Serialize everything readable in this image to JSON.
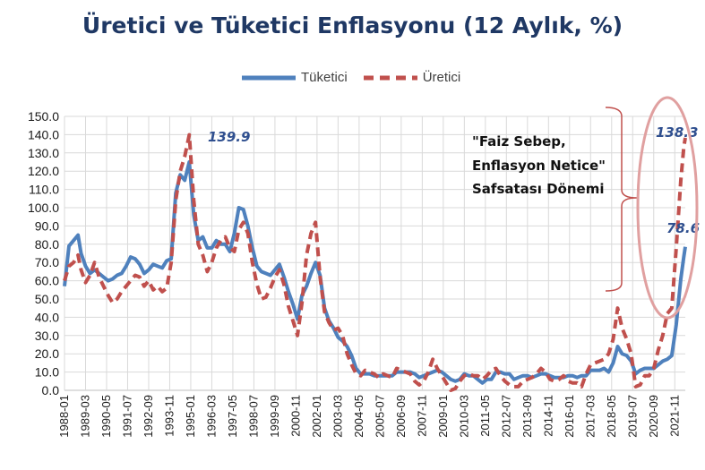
{
  "chart_data": {
    "type": "line",
    "title": "Üretici ve Tüketici Enflasyonu (12 Aylık, %)",
    "xlabel": "",
    "ylabel": "",
    "ylim": [
      0,
      150
    ],
    "yticks": [
      "0.0",
      "10.0",
      "20.0",
      "30.0",
      "40.0",
      "50.0",
      "60.0",
      "70.0",
      "80.0",
      "90.0",
      "100.0",
      "110.0",
      "120.0",
      "130.0",
      "140.0",
      "150.0"
    ],
    "xticks": [
      "1988-01",
      "1989-03",
      "1990-05",
      "1991-07",
      "1992-09",
      "1993-11",
      "1995-01",
      "1996-03",
      "1997-05",
      "1998-07",
      "1999-09",
      "2000-11",
      "2002-01",
      "2003-03",
      "2004-05",
      "2005-07",
      "2006-09",
      "2007-11",
      "2009-01",
      "2010-03",
      "2011-05",
      "2012-07",
      "2013-09",
      "2014-11",
      "2016-01",
      "2017-03",
      "2018-05",
      "2019-07",
      "2020-09",
      "2021-11"
    ],
    "grid": true,
    "legend": "top",
    "series": [
      {
        "name": "Tüketici",
        "style": "solid",
        "color": "#4f81bd",
        "points": [
          [
            "1988-01",
            57
          ],
          [
            "1988-04",
            79
          ],
          [
            "1988-07",
            82
          ],
          [
            "1988-10",
            85
          ],
          [
            "1988-12",
            75
          ],
          [
            "1989-03",
            68
          ],
          [
            "1989-06",
            64
          ],
          [
            "1989-09",
            66
          ],
          [
            "1989-12",
            64
          ],
          [
            "1990-03",
            62
          ],
          [
            "1990-06",
            60
          ],
          [
            "1990-09",
            61
          ],
          [
            "1990-12",
            63
          ],
          [
            "1991-03",
            64
          ],
          [
            "1991-06",
            68
          ],
          [
            "1991-09",
            73
          ],
          [
            "1991-12",
            72
          ],
          [
            "1992-03",
            69
          ],
          [
            "1992-06",
            64
          ],
          [
            "1992-09",
            66
          ],
          [
            "1992-12",
            69
          ],
          [
            "1993-03",
            68
          ],
          [
            "1993-06",
            67
          ],
          [
            "1993-09",
            71
          ],
          [
            "1993-12",
            72
          ],
          [
            "1994-03",
            108
          ],
          [
            "1994-06",
            118
          ],
          [
            "1994-09",
            115
          ],
          [
            "1994-12",
            125
          ],
          [
            "1995-03",
            96
          ],
          [
            "1995-06",
            82
          ],
          [
            "1995-09",
            84
          ],
          [
            "1995-12",
            78
          ],
          [
            "1996-03",
            78
          ],
          [
            "1996-06",
            82
          ],
          [
            "1996-09",
            80
          ],
          [
            "1996-12",
            80
          ],
          [
            "1997-03",
            76
          ],
          [
            "1997-06",
            86
          ],
          [
            "1997-09",
            100
          ],
          [
            "1997-12",
            99
          ],
          [
            "1998-03",
            90
          ],
          [
            "1998-06",
            78
          ],
          [
            "1998-09",
            68
          ],
          [
            "1998-12",
            65
          ],
          [
            "1999-03",
            64
          ],
          [
            "1999-06",
            63
          ],
          [
            "1999-09",
            66
          ],
          [
            "1999-12",
            69
          ],
          [
            "2000-03",
            62
          ],
          [
            "2000-06",
            54
          ],
          [
            "2000-09",
            47
          ],
          [
            "2000-12",
            39
          ],
          [
            "2001-03",
            52
          ],
          [
            "2001-06",
            57
          ],
          [
            "2001-09",
            64
          ],
          [
            "2001-12",
            70
          ],
          [
            "2002-03",
            63
          ],
          [
            "2002-06",
            45
          ],
          [
            "2002-09",
            38
          ],
          [
            "2002-12",
            34
          ],
          [
            "2003-03",
            29
          ],
          [
            "2003-06",
            27
          ],
          [
            "2003-09",
            24
          ],
          [
            "2003-12",
            19
          ],
          [
            "2004-03",
            12
          ],
          [
            "2004-06",
            9
          ],
          [
            "2004-09",
            9
          ],
          [
            "2004-12",
            9
          ],
          [
            "2005-03",
            8
          ],
          [
            "2005-06",
            8
          ],
          [
            "2005-09",
            8
          ],
          [
            "2005-12",
            8
          ],
          [
            "2006-03",
            8
          ],
          [
            "2006-06",
            10
          ],
          [
            "2006-09",
            10
          ],
          [
            "2006-12",
            10
          ],
          [
            "2007-03",
            10
          ],
          [
            "2007-06",
            9
          ],
          [
            "2007-09",
            7
          ],
          [
            "2007-12",
            8
          ],
          [
            "2008-03",
            9
          ],
          [
            "2008-06",
            10
          ],
          [
            "2008-09",
            11
          ],
          [
            "2008-12",
            10
          ],
          [
            "2009-03",
            8
          ],
          [
            "2009-06",
            6
          ],
          [
            "2009-09",
            5
          ],
          [
            "2009-12",
            6
          ],
          [
            "2010-03",
            9
          ],
          [
            "2010-06",
            8
          ],
          [
            "2010-09",
            8
          ],
          [
            "2010-12",
            6
          ],
          [
            "2011-03",
            4
          ],
          [
            "2011-06",
            6
          ],
          [
            "2011-09",
            6
          ],
          [
            "2011-12",
            10
          ],
          [
            "2012-03",
            10
          ],
          [
            "2012-06",
            9
          ],
          [
            "2012-09",
            9
          ],
          [
            "2012-12",
            6
          ],
          [
            "2013-03",
            7
          ],
          [
            "2013-06",
            8
          ],
          [
            "2013-09",
            8
          ],
          [
            "2013-12",
            7
          ],
          [
            "2014-03",
            8
          ],
          [
            "2014-06",
            9
          ],
          [
            "2014-09",
            9
          ],
          [
            "2014-12",
            8
          ],
          [
            "2015-03",
            7
          ],
          [
            "2015-06",
            7
          ],
          [
            "2015-09",
            7
          ],
          [
            "2015-12",
            8
          ],
          [
            "2016-03",
            8
          ],
          [
            "2016-06",
            7
          ],
          [
            "2016-09",
            8
          ],
          [
            "2016-12",
            8
          ],
          [
            "2017-03",
            11
          ],
          [
            "2017-06",
            11
          ],
          [
            "2017-09",
            11
          ],
          [
            "2017-12",
            12
          ],
          [
            "2018-03",
            10
          ],
          [
            "2018-06",
            15
          ],
          [
            "2018-09",
            24
          ],
          [
            "2018-12",
            20
          ],
          [
            "2019-03",
            19
          ],
          [
            "2019-06",
            16
          ],
          [
            "2019-09",
            9
          ],
          [
            "2019-12",
            11
          ],
          [
            "2020-03",
            12
          ],
          [
            "2020-06",
            12
          ],
          [
            "2020-09",
            12
          ],
          [
            "2020-12",
            14
          ],
          [
            "2021-03",
            16
          ],
          [
            "2021-06",
            17
          ],
          [
            "2021-09",
            19
          ],
          [
            "2021-12",
            36
          ],
          [
            "2022-03",
            61
          ],
          [
            "2022-05",
            73
          ],
          [
            "2022-06",
            78.6
          ]
        ]
      },
      {
        "name": "Üretici",
        "style": "dashed",
        "color": "#c0504d",
        "points": [
          [
            "1988-01",
            60
          ],
          [
            "1988-04",
            68
          ],
          [
            "1988-07",
            70
          ],
          [
            "1988-10",
            74
          ],
          [
            "1988-12",
            66
          ],
          [
            "1989-03",
            59
          ],
          [
            "1989-06",
            63
          ],
          [
            "1989-09",
            70
          ],
          [
            "1989-12",
            62
          ],
          [
            "1990-03",
            57
          ],
          [
            "1990-06",
            52
          ],
          [
            "1990-09",
            48
          ],
          [
            "1990-12",
            50
          ],
          [
            "1991-03",
            54
          ],
          [
            "1991-06",
            57
          ],
          [
            "1991-09",
            60
          ],
          [
            "1991-12",
            63
          ],
          [
            "1992-03",
            62
          ],
          [
            "1992-06",
            57
          ],
          [
            "1992-09",
            60
          ],
          [
            "1992-12",
            55
          ],
          [
            "1993-03",
            57
          ],
          [
            "1993-06",
            54
          ],
          [
            "1993-09",
            56
          ],
          [
            "1993-12",
            70
          ],
          [
            "1994-03",
            104
          ],
          [
            "1994-06",
            120
          ],
          [
            "1994-09",
            128
          ],
          [
            "1994-12",
            139.9
          ],
          [
            "1995-03",
            104
          ],
          [
            "1995-06",
            80
          ],
          [
            "1995-09",
            74
          ],
          [
            "1995-12",
            65
          ],
          [
            "1996-03",
            70
          ],
          [
            "1996-06",
            78
          ],
          [
            "1996-09",
            82
          ],
          [
            "1996-12",
            84
          ],
          [
            "1997-03",
            78
          ],
          [
            "1997-06",
            76
          ],
          [
            "1997-09",
            88
          ],
          [
            "1997-12",
            92
          ],
          [
            "1998-03",
            86
          ],
          [
            "1998-06",
            70
          ],
          [
            "1998-09",
            58
          ],
          [
            "1998-12",
            50
          ],
          [
            "1999-03",
            51
          ],
          [
            "1999-06",
            56
          ],
          [
            "1999-09",
            62
          ],
          [
            "1999-12",
            66
          ],
          [
            "2000-03",
            58
          ],
          [
            "2000-06",
            46
          ],
          [
            "2000-09",
            38
          ],
          [
            "2000-12",
            30
          ],
          [
            "2001-03",
            48
          ],
          [
            "2001-06",
            74
          ],
          [
            "2001-09",
            86
          ],
          [
            "2001-12",
            92
          ],
          [
            "2002-03",
            62
          ],
          [
            "2002-06",
            43
          ],
          [
            "2002-09",
            37
          ],
          [
            "2002-12",
            33
          ],
          [
            "2003-03",
            34
          ],
          [
            "2003-06",
            30
          ],
          [
            "2003-09",
            20
          ],
          [
            "2003-12",
            14
          ],
          [
            "2004-03",
            9
          ],
          [
            "2004-06",
            8
          ],
          [
            "2004-09",
            11
          ],
          [
            "2004-12",
            10
          ],
          [
            "2005-03",
            9
          ],
          [
            "2005-06",
            7
          ],
          [
            "2005-09",
            9
          ],
          [
            "2005-12",
            8
          ],
          [
            "2006-03",
            7
          ],
          [
            "2006-06",
            12
          ],
          [
            "2006-09",
            11
          ],
          [
            "2006-12",
            10
          ],
          [
            "2007-03",
            9
          ],
          [
            "2007-06",
            5
          ],
          [
            "2007-09",
            3
          ],
          [
            "2007-12",
            5
          ],
          [
            "2008-03",
            10
          ],
          [
            "2008-06",
            17
          ],
          [
            "2008-09",
            12
          ],
          [
            "2008-12",
            8
          ],
          [
            "2009-03",
            4
          ],
          [
            "2009-06",
            -1
          ],
          [
            "2009-09",
            1
          ],
          [
            "2009-12",
            5
          ],
          [
            "2010-03",
            8
          ],
          [
            "2010-06",
            9
          ],
          [
            "2010-09",
            8
          ],
          [
            "2010-12",
            8
          ],
          [
            "2011-03",
            6
          ],
          [
            "2011-06",
            8
          ],
          [
            "2011-09",
            11
          ],
          [
            "2011-12",
            12
          ],
          [
            "2012-03",
            8
          ],
          [
            "2012-06",
            5
          ],
          [
            "2012-09",
            3
          ],
          [
            "2012-12",
            2
          ],
          [
            "2013-03",
            2
          ],
          [
            "2013-06",
            5
          ],
          [
            "2013-09",
            6
          ],
          [
            "2013-12",
            7
          ],
          [
            "2014-03",
            9
          ],
          [
            "2014-06",
            12
          ],
          [
            "2014-09",
            10
          ],
          [
            "2014-12",
            6
          ],
          [
            "2015-03",
            5
          ],
          [
            "2015-06",
            6
          ],
          [
            "2015-09",
            8
          ],
          [
            "2015-12",
            5
          ],
          [
            "2016-03",
            4
          ],
          [
            "2016-06",
            4
          ],
          [
            "2016-09",
            2
          ],
          [
            "2016-12",
            9
          ],
          [
            "2017-03",
            14
          ],
          [
            "2017-06",
            15
          ],
          [
            "2017-09",
            16
          ],
          [
            "2017-12",
            17
          ],
          [
            "2018-03",
            20
          ],
          [
            "2018-06",
            28
          ],
          [
            "2018-09",
            45
          ],
          [
            "2018-12",
            34
          ],
          [
            "2019-03",
            28
          ],
          [
            "2019-06",
            20
          ],
          [
            "2019-09",
            2
          ],
          [
            "2019-12",
            3
          ],
          [
            "2020-03",
            8
          ],
          [
            "2020-06",
            8
          ],
          [
            "2020-09",
            12
          ],
          [
            "2020-12",
            22
          ],
          [
            "2021-03",
            30
          ],
          [
            "2021-06",
            42
          ],
          [
            "2021-09",
            45
          ],
          [
            "2021-12",
            78
          ],
          [
            "2022-03",
            115
          ],
          [
            "2022-05",
            133
          ],
          [
            "2022-06",
            138.3
          ]
        ]
      }
    ],
    "annotations": {
      "peak_1995": "139.9",
      "latest_producer": "138.3",
      "latest_consumer": "78.6",
      "note_lines": [
        "\"Faiz Sebep,",
        "Enflasyon Netice\"",
        "Safsatası Dönemi"
      ]
    },
    "colors": {
      "title": "#1f3864",
      "consumer": "#4f81bd",
      "producer": "#c0504d",
      "circle": "#e0a0a0",
      "annotation": "#2f4f8f"
    }
  }
}
